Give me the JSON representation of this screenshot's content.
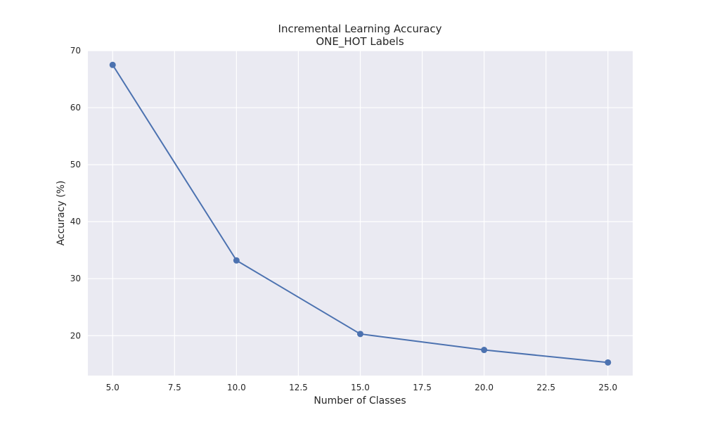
{
  "chart_data": {
    "type": "line",
    "title": "Incremental Learning Accuracy",
    "subtitle": "ONE_HOT Labels",
    "xlabel": "Number of Classes",
    "ylabel": "Accuracy (%)",
    "xlim": [
      4.0,
      26.0
    ],
    "ylim": [
      13.0,
      70.0
    ],
    "x_ticks": [
      5.0,
      7.5,
      10.0,
      12.5,
      15.0,
      17.5,
      20.0,
      22.5,
      25.0
    ],
    "x_tick_labels": [
      "5.0",
      "7.5",
      "10.0",
      "12.5",
      "15.0",
      "17.5",
      "20.0",
      "22.5",
      "25.0"
    ],
    "y_ticks": [
      20,
      30,
      40,
      50,
      60,
      70
    ],
    "y_tick_labels": [
      "20",
      "30",
      "40",
      "50",
      "60",
      "70"
    ],
    "grid": true,
    "series": [
      {
        "color": "#4c72b0",
        "marker": "circle",
        "x": [
          5,
          10,
          15,
          20,
          25
        ],
        "y": [
          67.5,
          33.2,
          20.3,
          17.5,
          15.3
        ]
      }
    ],
    "colors": {
      "plot_background": "#eaeaf2",
      "grid": "#ffffff",
      "text": "#262626"
    }
  }
}
